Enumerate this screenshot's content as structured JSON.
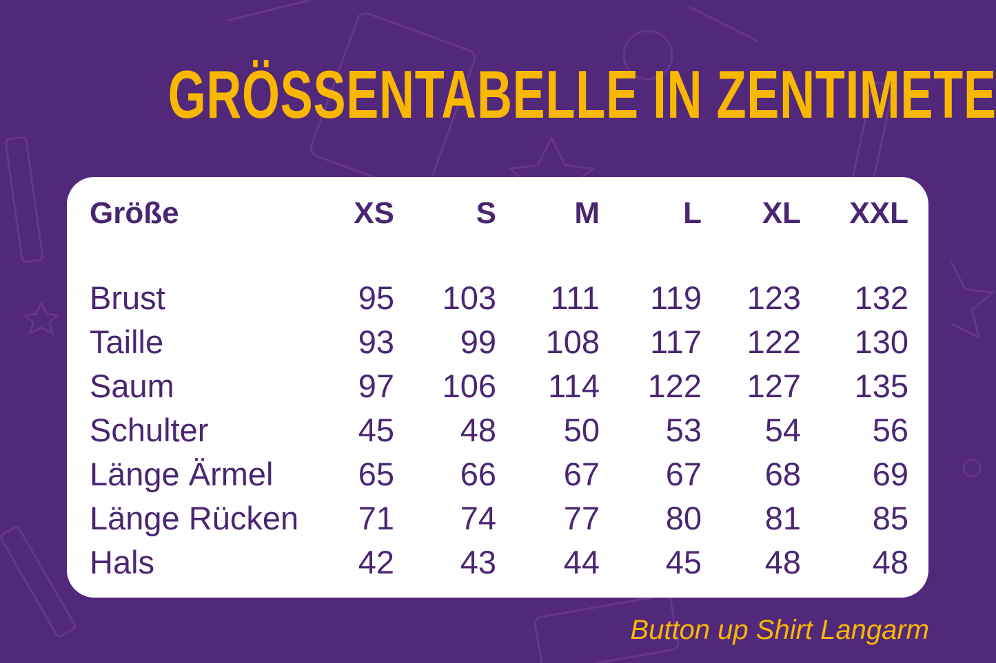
{
  "title": "GRÖSSENTABELLE IN ZENTIMETER",
  "colors": {
    "background": "#52287a",
    "accent": "#f9b800",
    "text": "#4a2672",
    "card": "#ffffff"
  },
  "table": {
    "header_label": "Größe",
    "sizes": [
      "XS",
      "S",
      "M",
      "L",
      "XL",
      "XXL"
    ],
    "rows": [
      {
        "label": "Brust",
        "values": [
          "95",
          "103",
          "111",
          "119",
          "123",
          "132"
        ]
      },
      {
        "label": "Taille",
        "values": [
          "93",
          "99",
          "108",
          "117",
          "122",
          "130"
        ]
      },
      {
        "label": "Saum",
        "values": [
          "97",
          "106",
          "114",
          "122",
          "127",
          "135"
        ]
      },
      {
        "label": "Schulter",
        "values": [
          "45",
          "48",
          "50",
          "53",
          "54",
          "56"
        ]
      },
      {
        "label": "Länge Ärmel",
        "values": [
          "65",
          "66",
          "67",
          "67",
          "68",
          "69"
        ]
      },
      {
        "label": "Länge Rücken",
        "values": [
          "71",
          "74",
          "77",
          "80",
          "81",
          "85"
        ]
      },
      {
        "label": "Hals",
        "values": [
          "42",
          "43",
          "44",
          "45",
          "48",
          "48"
        ]
      }
    ]
  },
  "footer": "Button up Shirt Langarm"
}
